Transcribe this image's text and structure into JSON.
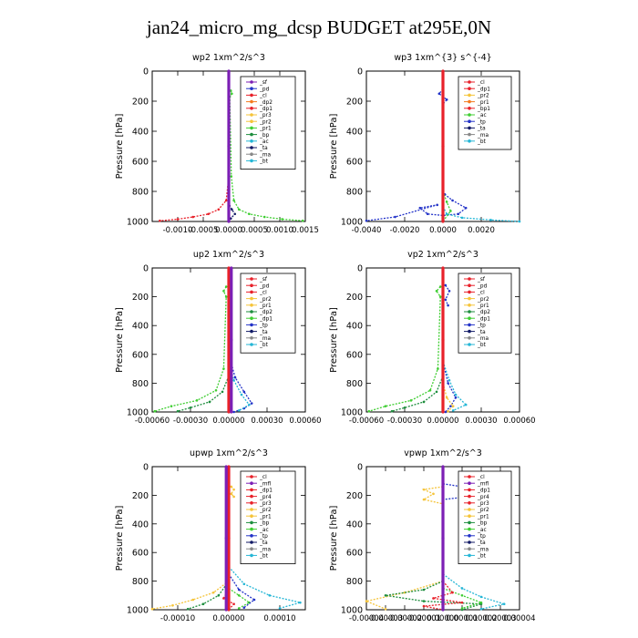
{
  "title": "jan24_micro_mg_dcsp  BUDGET at295E,0N",
  "colors": {
    "red": "#e8212a",
    "purple": "#7c1fb5",
    "green": "#3fce32",
    "yellow": "#f5c43a",
    "orange": "#f57a1e",
    "blue": "#2333c8",
    "cyan": "#25b6d6",
    "darkgreen": "#1e8e3e",
    "darkred": "#b5121b",
    "navy": "#111a66",
    "pink": "#e25a8c",
    "lime": "#a6d83b",
    "magenta": "#c23bd6",
    "gray": "#888888"
  },
  "chart_data": [
    {
      "type": "line",
      "title": "wp2   1xm^2/s^3",
      "ylabel": "Pressure [hPa]",
      "xlim": [
        -0.0015,
        0.0015
      ],
      "ylim": [
        1000,
        0
      ],
      "xticks": [
        -0.001,
        -0.0005,
        0.0,
        0.0005,
        0.001,
        0.0015
      ],
      "xtick_labels": [
        "-0.0010",
        "-0.0005",
        "0.0000",
        "0.0005",
        "0.0010",
        "0.0015"
      ],
      "yticks": [
        0,
        200,
        400,
        600,
        800,
        1000
      ],
      "ytick_labels": [
        "0",
        "200",
        "400",
        "600",
        "800",
        "1000"
      ],
      "legend": [
        "_sf",
        "_pd",
        "_cl",
        "_dp2",
        "_dp1",
        "_pr3",
        "_pr2",
        "_pr1",
        "_bp",
        "_ac",
        "_ta",
        "_ma",
        "_bt"
      ],
      "legend_colors": [
        "#7c1fb5",
        "#2333c8",
        "#e8212a",
        "#f57a1e",
        "#e8212a",
        "#f5c43a",
        "#f5c43a",
        "#3fce32",
        "#1e8e3e",
        "#25b6d6",
        "#111a66",
        "#888888",
        "#25b6d6"
      ],
      "series": [
        {
          "color": "#3fce32",
          "x": [
            4e-05,
            6e-05,
            2e-05,
            5e-05,
            0.0001,
            0.0002,
            0.0004,
            0.0007,
            0.00105,
            0.00145
          ],
          "y": [
            130,
            150,
            170,
            700,
            860,
            920,
            950,
            970,
            985,
            995
          ]
        },
        {
          "color": "#e8212a",
          "x": [
            0,
            0,
            0,
            -5e-05,
            -0.0002,
            -0.0004,
            -0.0007,
            -0.001,
            -0.00135
          ],
          "y": [
            0,
            200,
            700,
            860,
            920,
            950,
            970,
            985,
            995
          ]
        },
        {
          "color": "#111a66",
          "x": [
            0,
            0,
            0,
            6e-05,
            0.00012,
            4e-05,
            0
          ],
          "y": [
            0,
            500,
            880,
            920,
            950,
            980,
            1000
          ]
        },
        {
          "color": "#7c1fb5",
          "x": [
            0,
            0,
            0
          ],
          "y": [
            0,
            500,
            1000
          ]
        }
      ]
    },
    {
      "type": "line",
      "title": "wp3   1xm^{3} s^{-4}",
      "ylabel": "Pressure [hPa]",
      "xlim": [
        -0.004,
        0.004
      ],
      "ylim": [
        1000,
        0
      ],
      "xticks": [
        -0.004,
        -0.002,
        0.0,
        0.002
      ],
      "xtick_labels": [
        "-0.0040",
        "-0.0020",
        "0.0000",
        "0.0020"
      ],
      "yticks": [
        0,
        200,
        400,
        600,
        800,
        1000
      ],
      "ytick_labels": [
        "0",
        "200",
        "400",
        "600",
        "800",
        "1000"
      ],
      "legend": [
        "_cl",
        "_dp1",
        "_pr2",
        "_pr1",
        "_bp1",
        "_ac",
        "_tp",
        "_ta",
        "_ma",
        "_bt"
      ],
      "legend_colors": [
        "#e8212a",
        "#e8212a",
        "#f5c43a",
        "#f57a1e",
        "#e8212a",
        "#3fce32",
        "#2333c8",
        "#111a66",
        "#888888",
        "#25b6d6"
      ],
      "series": [
        {
          "color": "#2333c8",
          "x": [
            0,
            0.0001,
            0.0005,
            0.0012,
            0.0008,
            0,
            -0.0008,
            -0.0012,
            -0.0003,
            -0.0025,
            -0.004
          ],
          "y": [
            800,
            820,
            860,
            910,
            950,
            960,
            950,
            910,
            890,
            970,
            995
          ]
        },
        {
          "color": "#25b6d6",
          "x": [
            0,
            0.0002,
            0.001,
            0.0025,
            0.004
          ],
          "y": [
            900,
            950,
            975,
            990,
            1000
          ]
        },
        {
          "color": "#3fce32",
          "x": [
            0,
            0.0002,
            0.0004,
            0
          ],
          "y": [
            800,
            870,
            930,
            1000
          ]
        },
        {
          "color": "#2333c8",
          "x": [
            0,
            -0.0002,
            0.0002,
            0
          ],
          "y": [
            120,
            150,
            190,
            220
          ]
        },
        {
          "color": "#e8212a",
          "x": [
            0,
            0,
            0
          ],
          "y": [
            0,
            500,
            1000
          ]
        }
      ]
    },
    {
      "type": "line",
      "title": "up2   1xm^2/s^3",
      "ylabel": "Pressure [hPa]",
      "xlim": [
        -0.0006,
        0.0006
      ],
      "ylim": [
        1000,
        0
      ],
      "xticks": [
        -0.0006,
        -0.0003,
        0.0,
        0.0003,
        0.0006
      ],
      "xtick_labels": [
        "-0.00060",
        "-0.00030",
        "0.00000",
        "0.00030",
        "0.00060"
      ],
      "yticks": [
        0,
        200,
        400,
        600,
        800,
        1000
      ],
      "ytick_labels": [
        "0",
        "200",
        "400",
        "600",
        "800",
        "1000"
      ],
      "legend": [
        "_sf",
        "_pd",
        "_cl",
        "_pr2",
        "_pr1",
        "_dp2",
        "_dp1",
        "_tp",
        "_ta",
        "_ma",
        "_bt"
      ],
      "legend_colors": [
        "#e8212a",
        "#e8212a",
        "#e8212a",
        "#f5c43a",
        "#f5c43a",
        "#1e8e3e",
        "#3fce32",
        "#2333c8",
        "#111a66",
        "#888888",
        "#25b6d6"
      ],
      "series": [
        {
          "color": "#3fce32",
          "x": [
            -2e-05,
            -4e-05,
            -2e-05,
            -4e-05,
            -0.0001,
            -0.00025,
            -0.00045,
            -0.00058
          ],
          "y": [
            130,
            160,
            200,
            700,
            850,
            920,
            960,
            995
          ]
        },
        {
          "color": "#1e8e3e",
          "x": [
            0,
            -5e-05,
            -0.00015,
            -0.0003,
            -0.0004
          ],
          "y": [
            750,
            860,
            930,
            970,
            995
          ]
        },
        {
          "color": "#2333c8",
          "x": [
            0,
            5e-05,
            0.00012,
            0.00018,
            0.00012,
            4e-05
          ],
          "y": [
            600,
            760,
            860,
            940,
            975,
            1000
          ]
        },
        {
          "color": "#25b6d6",
          "x": [
            0,
            4e-05,
            0.0001,
            0.00016,
            8e-05
          ],
          "y": [
            650,
            780,
            880,
            950,
            990
          ]
        },
        {
          "color": "#e8212a",
          "x": [
            0,
            0,
            0
          ],
          "y": [
            0,
            500,
            1000
          ]
        },
        {
          "color": "#7c1fb5",
          "x": [
            2e-05,
            2e-05,
            2e-05
          ],
          "y": [
            0,
            500,
            1000
          ]
        }
      ]
    },
    {
      "type": "line",
      "title": "vp2   1xm^2/s^3",
      "ylabel": "Pressure [hPa]",
      "xlim": [
        -0.0006,
        0.0006
      ],
      "ylim": [
        1000,
        0
      ],
      "xticks": [
        -0.0006,
        -0.0003,
        0.0,
        0.0003,
        0.0006
      ],
      "xtick_labels": [
        "-0.00060",
        "-0.00030",
        "0.00000",
        "0.00030",
        "0.00060"
      ],
      "yticks": [
        0,
        200,
        400,
        600,
        800,
        1000
      ],
      "ytick_labels": [
        "0",
        "200",
        "400",
        "600",
        "800",
        "1000"
      ],
      "legend": [
        "_sf",
        "_pd",
        "_cl",
        "_pr2",
        "_pr1",
        "_dp2",
        "_dp1",
        "_tp",
        "_ta",
        "_ma",
        "_bt"
      ],
      "legend_colors": [
        "#e8212a",
        "#e8212a",
        "#e8212a",
        "#f5c43a",
        "#f5c43a",
        "#1e8e3e",
        "#3fce32",
        "#2333c8",
        "#111a66",
        "#888888",
        "#25b6d6"
      ],
      "series": [
        {
          "color": "#3fce32",
          "x": [
            -2e-05,
            -5e-05,
            -2e-05,
            -4e-05,
            -0.0001,
            -0.00025,
            -0.00045,
            -0.00058
          ],
          "y": [
            130,
            160,
            200,
            700,
            850,
            920,
            960,
            995
          ]
        },
        {
          "color": "#1e8e3e",
          "x": [
            0,
            -5e-05,
            -0.00015,
            -0.0003,
            -0.0004
          ],
          "y": [
            750,
            860,
            930,
            970,
            995
          ]
        },
        {
          "color": "#2333c8",
          "x": [
            2e-05,
            5e-05,
            2e-05,
            4e-05
          ],
          "y": [
            120,
            160,
            220,
            260
          ]
        },
        {
          "color": "#2333c8",
          "x": [
            0,
            4e-05,
            0.0001,
            6e-05,
            2e-05
          ],
          "y": [
            650,
            800,
            900,
            960,
            1000
          ]
        },
        {
          "color": "#f5c43a",
          "x": [
            0,
            3e-05,
            8e-05,
            4e-05
          ],
          "y": [
            800,
            900,
            960,
            995
          ]
        },
        {
          "color": "#25b6d6",
          "x": [
            0,
            5e-05,
            0.0001,
            0.00018,
            8e-05
          ],
          "y": [
            650,
            780,
            880,
            950,
            990
          ]
        },
        {
          "color": "#e8212a",
          "x": [
            0,
            0,
            0
          ],
          "y": [
            0,
            500,
            1000
          ]
        }
      ]
    },
    {
      "type": "line",
      "title": "upwp   1xm^2/s^3",
      "ylabel": "Pressure [hPa]",
      "xlim": [
        -0.00015,
        0.00015
      ],
      "ylim": [
        1000,
        0
      ],
      "xticks": [
        -0.0001,
        0.0,
        0.0001
      ],
      "xtick_labels": [
        "-0.00010",
        "0.00000",
        "0.00010"
      ],
      "yticks": [
        0,
        200,
        400,
        600,
        800,
        1000
      ],
      "ytick_labels": [
        "0",
        "200",
        "400",
        "600",
        "800",
        "1000"
      ],
      "legend": [
        "_cl",
        "_mfl",
        "_dp1",
        "_pr4",
        "_pr3",
        "_pr2",
        "_pr1",
        "_bp",
        "_ac",
        "_tp",
        "_ta",
        "_ma",
        "_bt"
      ],
      "legend_colors": [
        "#e8212a",
        "#7c1fb5",
        "#e8212a",
        "#e8212a",
        "#e8212a",
        "#f5c43a",
        "#f5c43a",
        "#1e8e3e",
        "#3fce32",
        "#2333c8",
        "#111a66",
        "#888888",
        "#25b6d6"
      ],
      "series": [
        {
          "color": "#f5c43a",
          "x": [
            0,
            -3e-05,
            -7e-05,
            -0.00011,
            -0.00015
          ],
          "y": [
            800,
            880,
            930,
            970,
            995
          ]
        },
        {
          "color": "#f5c43a",
          "x": [
            5e-06,
            1e-05,
            5e-06,
            1e-05
          ],
          "y": [
            140,
            160,
            190,
            210
          ]
        },
        {
          "color": "#1e8e3e",
          "x": [
            0,
            -2e-05,
            -5e-05,
            -8e-05
          ],
          "y": [
            800,
            900,
            960,
            995
          ]
        },
        {
          "color": "#3fce32",
          "x": [
            0,
            2e-05,
            4e-05,
            2e-05
          ],
          "y": [
            850,
            900,
            950,
            990
          ]
        },
        {
          "color": "#25b6d6",
          "x": [
            0,
            3e-05,
            8e-05,
            0.00014,
            0.0001
          ],
          "y": [
            700,
            820,
            900,
            950,
            990
          ]
        },
        {
          "color": "#2333c8",
          "x": [
            0,
            2e-05,
            5e-05,
            3e-05
          ],
          "y": [
            750,
            860,
            930,
            985
          ]
        },
        {
          "color": "#e8212a",
          "x": [
            0,
            -1e-05,
            1e-05,
            0
          ],
          "y": [
            850,
            920,
            960,
            1000
          ]
        },
        {
          "color": "#e8212a",
          "x": [
            0,
            0,
            0
          ],
          "y": [
            0,
            500,
            1000
          ]
        },
        {
          "color": "#7c1fb5",
          "x": [
            -5e-06,
            -5e-06,
            -5e-06
          ],
          "y": [
            0,
            500,
            1000
          ]
        }
      ]
    },
    {
      "type": "line",
      "title": "vpwp   1xm^2/s^3",
      "ylabel": "Pressure [hPa]",
      "xlim": [
        -4e-05,
        4e-05
      ],
      "ylim": [
        1000,
        0
      ],
      "xticks": [
        -4e-05,
        -3e-05,
        -2e-05,
        -1e-05,
        0.0,
        1e-05,
        2e-05,
        3e-05,
        4e-05
      ],
      "xtick_labels": [
        "-0.00004",
        "-0.00003",
        "-0.00002",
        "-0.00001",
        "0.00000",
        "0.00001",
        "0.00002",
        "0.00003",
        "0.00004"
      ],
      "yticks": [
        0,
        200,
        400,
        600,
        800,
        1000
      ],
      "ytick_labels": [
        "0",
        "200",
        "400",
        "600",
        "800",
        "1000"
      ],
      "legend": [
        "_cl",
        "_mfl",
        "_dp1",
        "_pr4",
        "_pr3",
        "_pr2",
        "_pr1",
        "_bp",
        "_ac",
        "_tp",
        "_ta",
        "_ma",
        "_bt"
      ],
      "legend_colors": [
        "#e8212a",
        "#7c1fb5",
        "#e8212a",
        "#e8212a",
        "#e8212a",
        "#f5c43a",
        "#f5c43a",
        "#1e8e3e",
        "#3fce32",
        "#2333c8",
        "#111a66",
        "#888888",
        "#25b6d6"
      ],
      "series": [
        {
          "color": "#f5c43a",
          "x": [
            0,
            -2e-05,
            -4e-05,
            -3e-05
          ],
          "y": [
            800,
            880,
            940,
            995
          ]
        },
        {
          "color": "#f5c43a",
          "x": [
            0,
            -1e-05,
            -5e-06,
            -1e-05,
            0
          ],
          "y": [
            140,
            160,
            190,
            230,
            260
          ]
        },
        {
          "color": "#25b6d6",
          "x": [
            0,
            1e-05,
            2e-05,
            3.2e-05,
            2e-05
          ],
          "y": [
            750,
            850,
            910,
            960,
            995
          ]
        },
        {
          "color": "#2333c8",
          "x": [
            0,
            1e-05,
            3e-05,
            2e-05,
            0
          ],
          "y": [
            120,
            140,
            170,
            200,
            230
          ]
        },
        {
          "color": "#1e8e3e",
          "x": [
            0,
            -1e-05,
            -3e-05,
            -1e-05,
            2e-05,
            1e-05
          ],
          "y": [
            800,
            860,
            900,
            940,
            960,
            1000
          ]
        },
        {
          "color": "#3fce32",
          "x": [
            0,
            1e-05,
            2e-05,
            1e-05
          ],
          "y": [
            850,
            900,
            950,
            990
          ]
        },
        {
          "color": "#e8212a",
          "x": [
            0,
            5e-06,
            -5e-06,
            1e-05,
            -1e-05,
            0
          ],
          "y": [
            800,
            880,
            920,
            950,
            975,
            1000
          ]
        },
        {
          "color": "#7c1fb5",
          "x": [
            0,
            0,
            0
          ],
          "y": [
            0,
            500,
            1000
          ]
        }
      ]
    }
  ]
}
